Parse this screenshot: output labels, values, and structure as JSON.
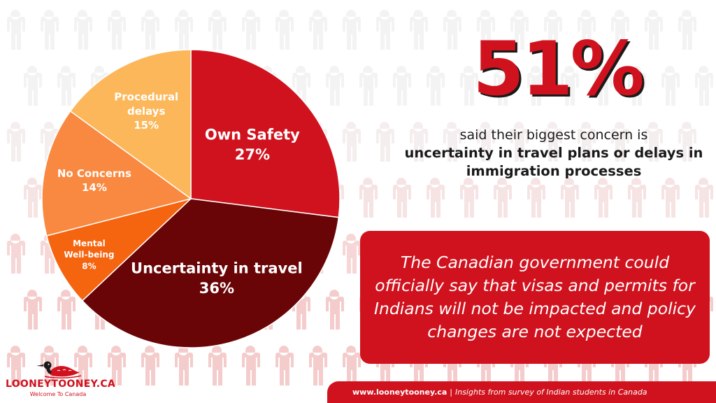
{
  "chart_data": {
    "type": "pie",
    "title": "",
    "slices": [
      {
        "label": "Own Safety",
        "value": 27,
        "display": "27%",
        "color": "#d0121e"
      },
      {
        "label": "Uncertainty in travel",
        "value": 36,
        "display": "36%",
        "color": "#6a0507"
      },
      {
        "label": "Mental Well-being",
        "value": 8,
        "display": "8%",
        "color": "#f5640f"
      },
      {
        "label": "No Concerns",
        "value": 14,
        "display": "14%",
        "color": "#f98940"
      },
      {
        "label": "Procedural delays",
        "value": 15,
        "display": "15%",
        "color": "#fbb759"
      }
    ]
  },
  "headline": {
    "stat": "51%",
    "caption_line1": "said their biggest concern is",
    "caption_line2": "uncertainty in travel plans or delays in immigration processes"
  },
  "quote": {
    "text": "The Canadian government could officially say that visas and permits for Indians will not be impacted and policy changes are not expected"
  },
  "footer": {
    "url": "www.looneytooney.ca",
    "separator": "|",
    "description": "Insights from survey of Indian students in Canada"
  },
  "brand": {
    "name": "LOONEYTOONEY.CA",
    "tagline": "Welcome To Canada",
    "logo_icon": "loon-bird-icon",
    "accent": "#d0121e"
  },
  "background": {
    "icon": "person-silhouette-icon"
  }
}
